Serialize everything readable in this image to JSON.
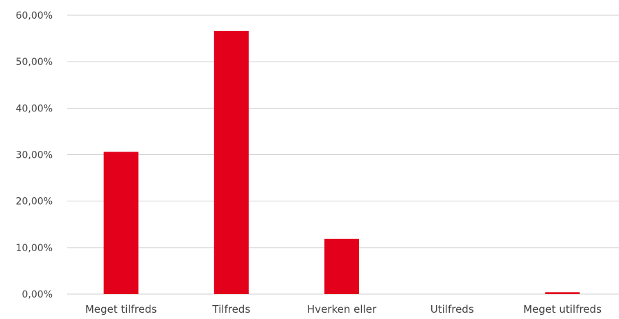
{
  "chart_data": {
    "type": "bar",
    "categories": [
      "Meget tilfreds",
      "Tilfreds",
      "Hverken eller",
      "Utilfreds",
      "Meget utilfreds"
    ],
    "values": [
      30.6,
      56.6,
      11.9,
      0.0,
      0.4
    ],
    "yticks": [
      "0,00%",
      "10,00%",
      "20,00%",
      "30,00%",
      "40,00%",
      "50,00%",
      "60,00%"
    ],
    "ylim": [
      0,
      60
    ],
    "grid": true,
    "legend": "none",
    "bar_color": "#E2001A",
    "grid_color": "#cfcfcf",
    "text_color": "#444444"
  }
}
